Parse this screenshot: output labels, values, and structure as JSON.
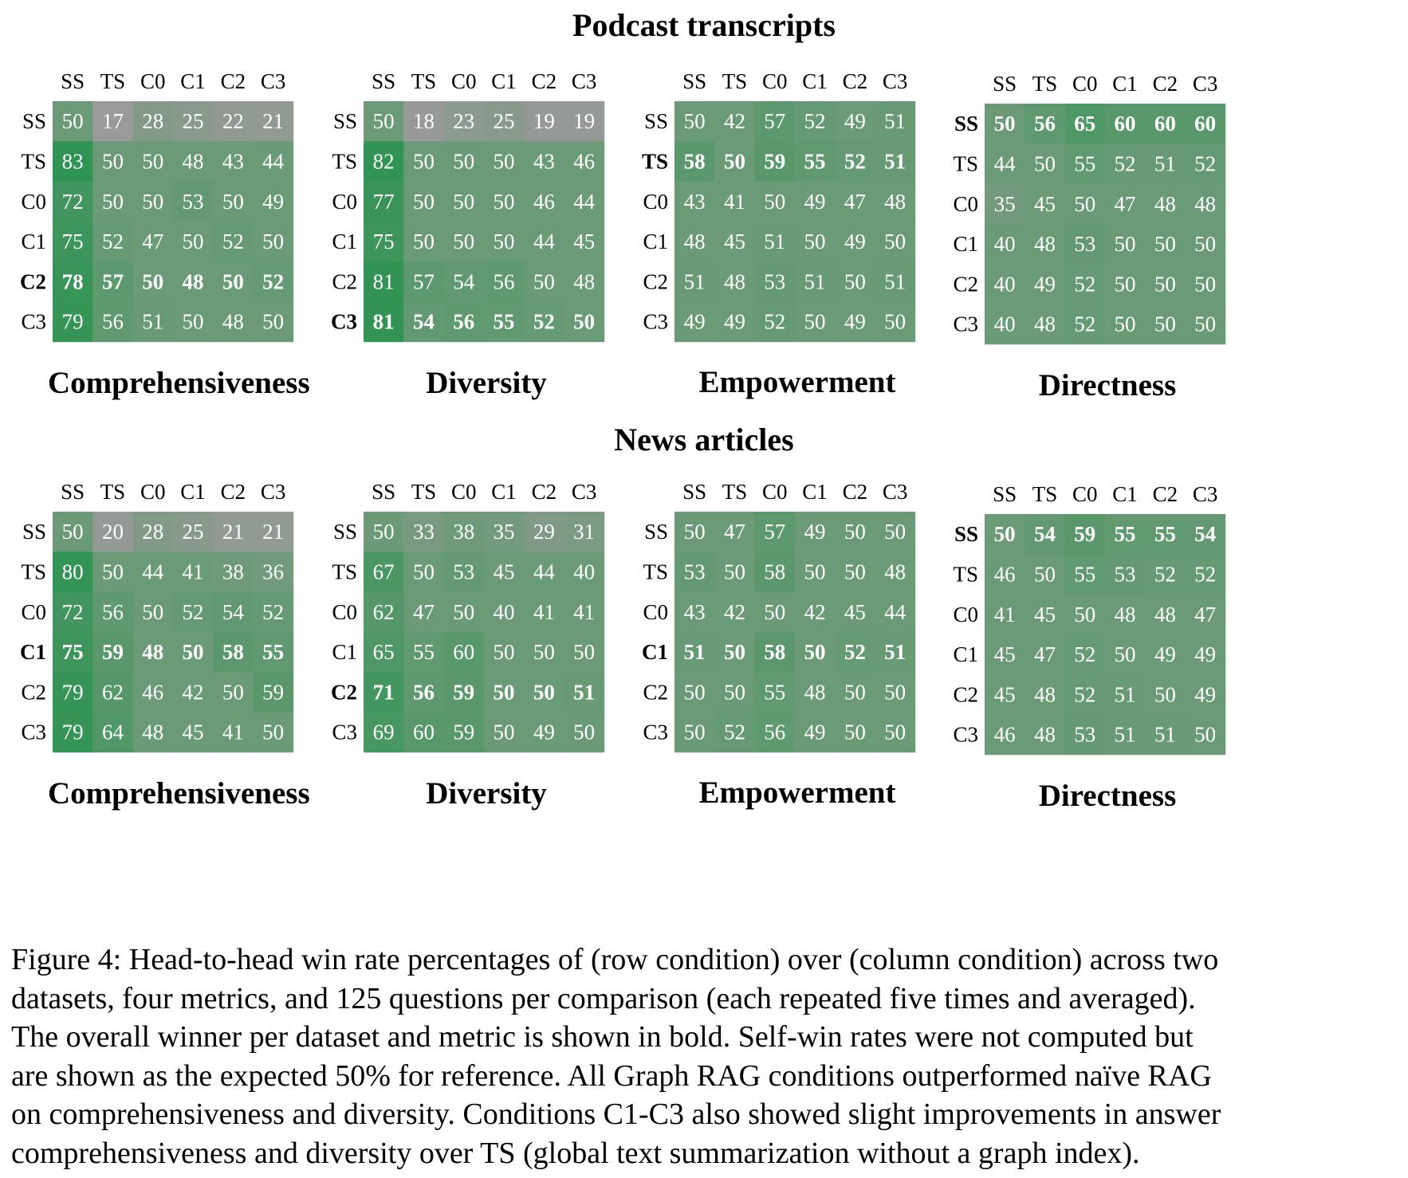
{
  "sections": [
    {
      "title": "Podcast transcripts"
    },
    {
      "title": "News articles"
    }
  ],
  "chart_data": [
    {
      "type": "heatmap",
      "dataset": "Podcast transcripts",
      "metric": "Comprehensiveness",
      "row_labels": [
        "SS",
        "TS",
        "C0",
        "C1",
        "C2",
        "C3"
      ],
      "col_labels": [
        "SS",
        "TS",
        "C0",
        "C1",
        "C2",
        "C3"
      ],
      "bold_row": 4,
      "values": [
        [
          50,
          17,
          28,
          25,
          22,
          21
        ],
        [
          83,
          50,
          50,
          48,
          43,
          44
        ],
        [
          72,
          50,
          50,
          53,
          50,
          49
        ],
        [
          75,
          52,
          47,
          50,
          52,
          50
        ],
        [
          78,
          57,
          50,
          48,
          50,
          52
        ],
        [
          79,
          56,
          51,
          50,
          48,
          50
        ]
      ]
    },
    {
      "type": "heatmap",
      "dataset": "Podcast transcripts",
      "metric": "Diversity",
      "row_labels": [
        "SS",
        "TS",
        "C0",
        "C1",
        "C2",
        "C3"
      ],
      "col_labels": [
        "SS",
        "TS",
        "C0",
        "C1",
        "C2",
        "C3"
      ],
      "bold_row": 5,
      "values": [
        [
          50,
          18,
          23,
          25,
          19,
          19
        ],
        [
          82,
          50,
          50,
          50,
          43,
          46
        ],
        [
          77,
          50,
          50,
          50,
          46,
          44
        ],
        [
          75,
          50,
          50,
          50,
          44,
          45
        ],
        [
          81,
          57,
          54,
          56,
          50,
          48
        ],
        [
          81,
          54,
          56,
          55,
          52,
          50
        ]
      ]
    },
    {
      "type": "heatmap",
      "dataset": "Podcast transcripts",
      "metric": "Empowerment",
      "row_labels": [
        "SS",
        "TS",
        "C0",
        "C1",
        "C2",
        "C3"
      ],
      "col_labels": [
        "SS",
        "TS",
        "C0",
        "C1",
        "C2",
        "C3"
      ],
      "bold_row": 1,
      "values": [
        [
          50,
          42,
          57,
          52,
          49,
          51
        ],
        [
          58,
          50,
          59,
          55,
          52,
          51
        ],
        [
          43,
          41,
          50,
          49,
          47,
          48
        ],
        [
          48,
          45,
          51,
          50,
          49,
          50
        ],
        [
          51,
          48,
          53,
          51,
          50,
          51
        ],
        [
          49,
          49,
          52,
          50,
          49,
          50
        ]
      ]
    },
    {
      "type": "heatmap",
      "dataset": "Podcast transcripts",
      "metric": "Directness",
      "row_labels": [
        "SS",
        "TS",
        "C0",
        "C1",
        "C2",
        "C3"
      ],
      "col_labels": [
        "SS",
        "TS",
        "C0",
        "C1",
        "C2",
        "C3"
      ],
      "bold_row": 0,
      "values": [
        [
          50,
          56,
          65,
          60,
          60,
          60
        ],
        [
          44,
          50,
          55,
          52,
          51,
          52
        ],
        [
          35,
          45,
          50,
          47,
          48,
          48
        ],
        [
          40,
          48,
          53,
          50,
          50,
          50
        ],
        [
          40,
          49,
          52,
          50,
          50,
          50
        ],
        [
          40,
          48,
          52,
          50,
          50,
          50
        ]
      ]
    },
    {
      "type": "heatmap",
      "dataset": "News articles",
      "metric": "Comprehensiveness",
      "row_labels": [
        "SS",
        "TS",
        "C0",
        "C1",
        "C2",
        "C3"
      ],
      "col_labels": [
        "SS",
        "TS",
        "C0",
        "C1",
        "C2",
        "C3"
      ],
      "bold_row": 3,
      "values": [
        [
          50,
          20,
          28,
          25,
          21,
          21
        ],
        [
          80,
          50,
          44,
          41,
          38,
          36
        ],
        [
          72,
          56,
          50,
          52,
          54,
          52
        ],
        [
          75,
          59,
          48,
          50,
          58,
          55
        ],
        [
          79,
          62,
          46,
          42,
          50,
          59
        ],
        [
          79,
          64,
          48,
          45,
          41,
          50
        ]
      ]
    },
    {
      "type": "heatmap",
      "dataset": "News articles",
      "metric": "Diversity",
      "row_labels": [
        "SS",
        "TS",
        "C0",
        "C1",
        "C2",
        "C3"
      ],
      "col_labels": [
        "SS",
        "TS",
        "C0",
        "C1",
        "C2",
        "C3"
      ],
      "bold_row": 4,
      "values": [
        [
          50,
          33,
          38,
          35,
          29,
          31
        ],
        [
          67,
          50,
          53,
          45,
          44,
          40
        ],
        [
          62,
          47,
          50,
          40,
          41,
          41
        ],
        [
          65,
          55,
          60,
          50,
          50,
          50
        ],
        [
          71,
          56,
          59,
          50,
          50,
          51
        ],
        [
          69,
          60,
          59,
          50,
          49,
          50
        ]
      ]
    },
    {
      "type": "heatmap",
      "dataset": "News articles",
      "metric": "Empowerment",
      "row_labels": [
        "SS",
        "TS",
        "C0",
        "C1",
        "C2",
        "C3"
      ],
      "col_labels": [
        "SS",
        "TS",
        "C0",
        "C1",
        "C2",
        "C3"
      ],
      "bold_row": 3,
      "values": [
        [
          50,
          47,
          57,
          49,
          50,
          50
        ],
        [
          53,
          50,
          58,
          50,
          50,
          48
        ],
        [
          43,
          42,
          50,
          42,
          45,
          44
        ],
        [
          51,
          50,
          58,
          50,
          52,
          51
        ],
        [
          50,
          50,
          55,
          48,
          50,
          50
        ],
        [
          50,
          52,
          56,
          49,
          50,
          50
        ]
      ]
    },
    {
      "type": "heatmap",
      "dataset": "News articles",
      "metric": "Directness",
      "row_labels": [
        "SS",
        "TS",
        "C0",
        "C1",
        "C2",
        "C3"
      ],
      "col_labels": [
        "SS",
        "TS",
        "C0",
        "C1",
        "C2",
        "C3"
      ],
      "bold_row": 0,
      "values": [
        [
          50,
          54,
          59,
          55,
          55,
          54
        ],
        [
          46,
          50,
          55,
          53,
          52,
          52
        ],
        [
          41,
          45,
          50,
          48,
          48,
          47
        ],
        [
          45,
          47,
          52,
          50,
          49,
          49
        ],
        [
          45,
          48,
          52,
          51,
          50,
          49
        ],
        [
          46,
          48,
          53,
          51,
          51,
          50
        ]
      ]
    }
  ],
  "colors": {
    "low": "#9a9a9a",
    "mid": "#6a9a76",
    "high": "#2f9353"
  },
  "caption": [
    "Figure 4: Head-to-head win rate percentages of (row condition) over (column condition) across two",
    "datasets, four metrics, and 125 questions per comparison (each repeated five times and averaged).",
    "The overall winner per dataset and metric is shown in bold.  Self-win rates were not computed but",
    "are shown as the expected 50% for reference.  All Graph RAG conditions outperformed naïve RAG",
    "on comprehensiveness and diversity. Conditions C1-C3 also showed slight improvements in answer",
    "comprehensiveness and diversity over TS (global text summarization without a graph index)."
  ]
}
